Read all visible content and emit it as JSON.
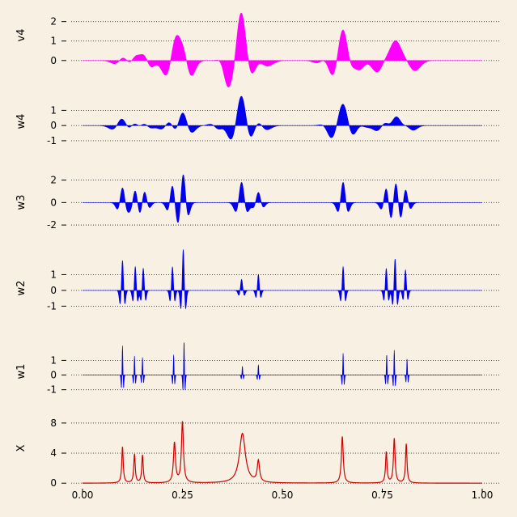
{
  "chart_data": {
    "type": "area",
    "title": "",
    "xlabel": "",
    "xlim": [
      0,
      1
    ],
    "x_ticks": [
      0,
      0.25,
      0.5,
      0.75,
      1
    ],
    "x_tick_labels": [
      "0.00",
      "0.25",
      "0.50",
      "0.75",
      "1.00"
    ],
    "grid": "dotted horizontal at y ticks",
    "panels": [
      {
        "name": "v4",
        "label": "v4",
        "color": "#ff00ff",
        "kind": "filled",
        "ylim": [
          -0.3,
          2.9
        ],
        "y_ticks": [
          0,
          1,
          2
        ],
        "y_tick_labels": [
          "0",
          "1",
          "2"
        ],
        "features": [
          {
            "center": 0.105,
            "amp": 0.35,
            "width": 0.015
          },
          {
            "center": 0.135,
            "amp": 0.6,
            "width": 0.015
          },
          {
            "center": 0.155,
            "amp": 0.45,
            "width": 0.012
          },
          {
            "center": 0.235,
            "amp": 1.65,
            "width": 0.016
          },
          {
            "center": 0.255,
            "amp": 0.9,
            "width": 0.013
          },
          {
            "center": 0.36,
            "amp": -0.25,
            "width": 0.01
          },
          {
            "center": 0.397,
            "amp": 2.7,
            "width": 0.017
          },
          {
            "center": 0.43,
            "amp": 0.6,
            "width": 0.02
          },
          {
            "center": 0.61,
            "amp": 0.25,
            "width": 0.015
          },
          {
            "center": 0.652,
            "amp": 1.7,
            "width": 0.017
          },
          {
            "center": 0.68,
            "amp": 0.35,
            "width": 0.012
          },
          {
            "center": 0.755,
            "amp": 0.5,
            "width": 0.015
          },
          {
            "center": 0.782,
            "amp": 1.5,
            "width": 0.02
          },
          {
            "center": 0.81,
            "amp": 0.6,
            "width": 0.017
          }
        ]
      },
      {
        "name": "w4",
        "label": "w4",
        "color": "#0000ee",
        "kind": "filled",
        "ylim": [
          -1.75,
          2.3
        ],
        "y_ticks": [
          -1,
          0,
          1
        ],
        "y_tick_labels": [
          "-1",
          "0",
          "1"
        ],
        "features": [
          {
            "center": 0.1,
            "amp": 0.55,
            "width": 0.015
          },
          {
            "center": 0.13,
            "amp": 0.45,
            "width": 0.013
          },
          {
            "center": 0.153,
            "amp": 0.3,
            "width": 0.012
          },
          {
            "center": 0.22,
            "amp": 0.5,
            "width": 0.014
          },
          {
            "center": 0.25,
            "amp": 1.0,
            "width": 0.014
          },
          {
            "center": 0.34,
            "amp": -0.2,
            "width": 0.012
          },
          {
            "center": 0.398,
            "amp": 2.1,
            "width": 0.016
          },
          {
            "center": 0.435,
            "amp": 0.6,
            "width": 0.016
          },
          {
            "center": 0.62,
            "amp": -0.2,
            "width": 0.012
          },
          {
            "center": 0.652,
            "amp": 1.4,
            "width": 0.016
          },
          {
            "center": 0.69,
            "amp": 0.2,
            "width": 0.014
          },
          {
            "center": 0.758,
            "amp": 0.6,
            "width": 0.014
          },
          {
            "center": 0.785,
            "amp": 1.0,
            "width": 0.016
          },
          {
            "center": 0.81,
            "amp": 0.4,
            "width": 0.013
          }
        ]
      },
      {
        "name": "w3",
        "label": "w3",
        "color": "#0000ee",
        "kind": "filled",
        "ylim": [
          -3.0,
          3.05
        ],
        "y_ticks": [
          -2,
          0,
          2
        ],
        "y_tick_labels": [
          "-2",
          "0",
          "2"
        ],
        "features": [
          {
            "center": 0.1,
            "amp": 1.3,
            "width": 0.0075
          },
          {
            "center": 0.132,
            "amp": 1.1,
            "width": 0.0075
          },
          {
            "center": 0.155,
            "amp": 1.0,
            "width": 0.0075
          },
          {
            "center": 0.225,
            "amp": 1.5,
            "width": 0.0075
          },
          {
            "center": 0.252,
            "amp": 2.5,
            "width": 0.0075
          },
          {
            "center": 0.398,
            "amp": 1.8,
            "width": 0.0085
          },
          {
            "center": 0.44,
            "amp": 0.9,
            "width": 0.0075
          },
          {
            "center": 0.652,
            "amp": 1.8,
            "width": 0.0075
          },
          {
            "center": 0.76,
            "amp": 1.3,
            "width": 0.0075
          },
          {
            "center": 0.784,
            "amp": 1.8,
            "width": 0.0075
          },
          {
            "center": 0.808,
            "amp": 1.2,
            "width": 0.0075
          }
        ]
      },
      {
        "name": "w2",
        "label": "w2",
        "color": "#0000ee",
        "kind": "filled",
        "ylim": [
          -1.8,
          2.1
        ],
        "y_ticks": [
          -1,
          0,
          1
        ],
        "y_tick_labels": [
          "-1",
          "0",
          "1"
        ],
        "features": [
          {
            "center": 0.1,
            "amp": 1.9,
            "width": 0.0035
          },
          {
            "center": 0.132,
            "amp": 1.5,
            "width": 0.0035
          },
          {
            "center": 0.152,
            "amp": 1.4,
            "width": 0.0035
          },
          {
            "center": 0.225,
            "amp": 1.5,
            "width": 0.0035
          },
          {
            "center": 0.252,
            "amp": 2.6,
            "width": 0.0035
          },
          {
            "center": 0.398,
            "amp": 0.7,
            "width": 0.004
          },
          {
            "center": 0.44,
            "amp": 1.0,
            "width": 0.0035
          },
          {
            "center": 0.652,
            "amp": 1.5,
            "width": 0.0035
          },
          {
            "center": 0.76,
            "amp": 1.4,
            "width": 0.0035
          },
          {
            "center": 0.782,
            "amp": 2.0,
            "width": 0.0035
          },
          {
            "center": 0.808,
            "amp": 1.3,
            "width": 0.0035
          }
        ]
      },
      {
        "name": "w1",
        "label": "w1",
        "color": "#0000ee",
        "kind": "filled",
        "ylim": [
          -1.9,
          2.4
        ],
        "y_ticks": [
          -1,
          0,
          1
        ],
        "y_tick_labels": [
          "-1",
          "0",
          "1"
        ],
        "features": [
          {
            "center": 0.1,
            "amp": 2.0,
            "width": 0.0016
          },
          {
            "center": 0.13,
            "amp": 1.3,
            "width": 0.0016
          },
          {
            "center": 0.15,
            "amp": 1.2,
            "width": 0.0016
          },
          {
            "center": 0.228,
            "amp": 1.4,
            "width": 0.0016
          },
          {
            "center": 0.254,
            "amp": 2.3,
            "width": 0.0016
          },
          {
            "center": 0.4,
            "amp": 0.6,
            "width": 0.0016
          },
          {
            "center": 0.44,
            "amp": 0.7,
            "width": 0.0016
          },
          {
            "center": 0.652,
            "amp": 1.5,
            "width": 0.0016
          },
          {
            "center": 0.761,
            "amp": 1.4,
            "width": 0.0016
          },
          {
            "center": 0.78,
            "amp": 1.7,
            "width": 0.0016
          },
          {
            "center": 0.812,
            "amp": 1.1,
            "width": 0.0016
          }
        ]
      },
      {
        "name": "X",
        "label": "X",
        "color": "#cc0000",
        "kind": "line",
        "ylim": [
          -0.3,
          9.6
        ],
        "y_ticks": [
          0,
          4,
          8
        ],
        "y_tick_labels": [
          "0",
          "4",
          "8"
        ],
        "peaks": [
          {
            "x": 0.1,
            "height": 4.8,
            "width": 0.0022
          },
          {
            "x": 0.13,
            "height": 3.8,
            "width": 0.0022
          },
          {
            "x": 0.15,
            "height": 3.7,
            "width": 0.0022
          },
          {
            "x": 0.23,
            "height": 5.3,
            "width": 0.003
          },
          {
            "x": 0.25,
            "height": 8.1,
            "width": 0.003
          },
          {
            "x": 0.4,
            "height": 6.6,
            "width": 0.009
          },
          {
            "x": 0.44,
            "height": 2.8,
            "width": 0.0035
          },
          {
            "x": 0.65,
            "height": 6.2,
            "width": 0.0028
          },
          {
            "x": 0.76,
            "height": 4.1,
            "width": 0.0022
          },
          {
            "x": 0.78,
            "height": 5.9,
            "width": 0.0025
          },
          {
            "x": 0.81,
            "height": 5.2,
            "width": 0.0022
          }
        ]
      }
    ]
  }
}
